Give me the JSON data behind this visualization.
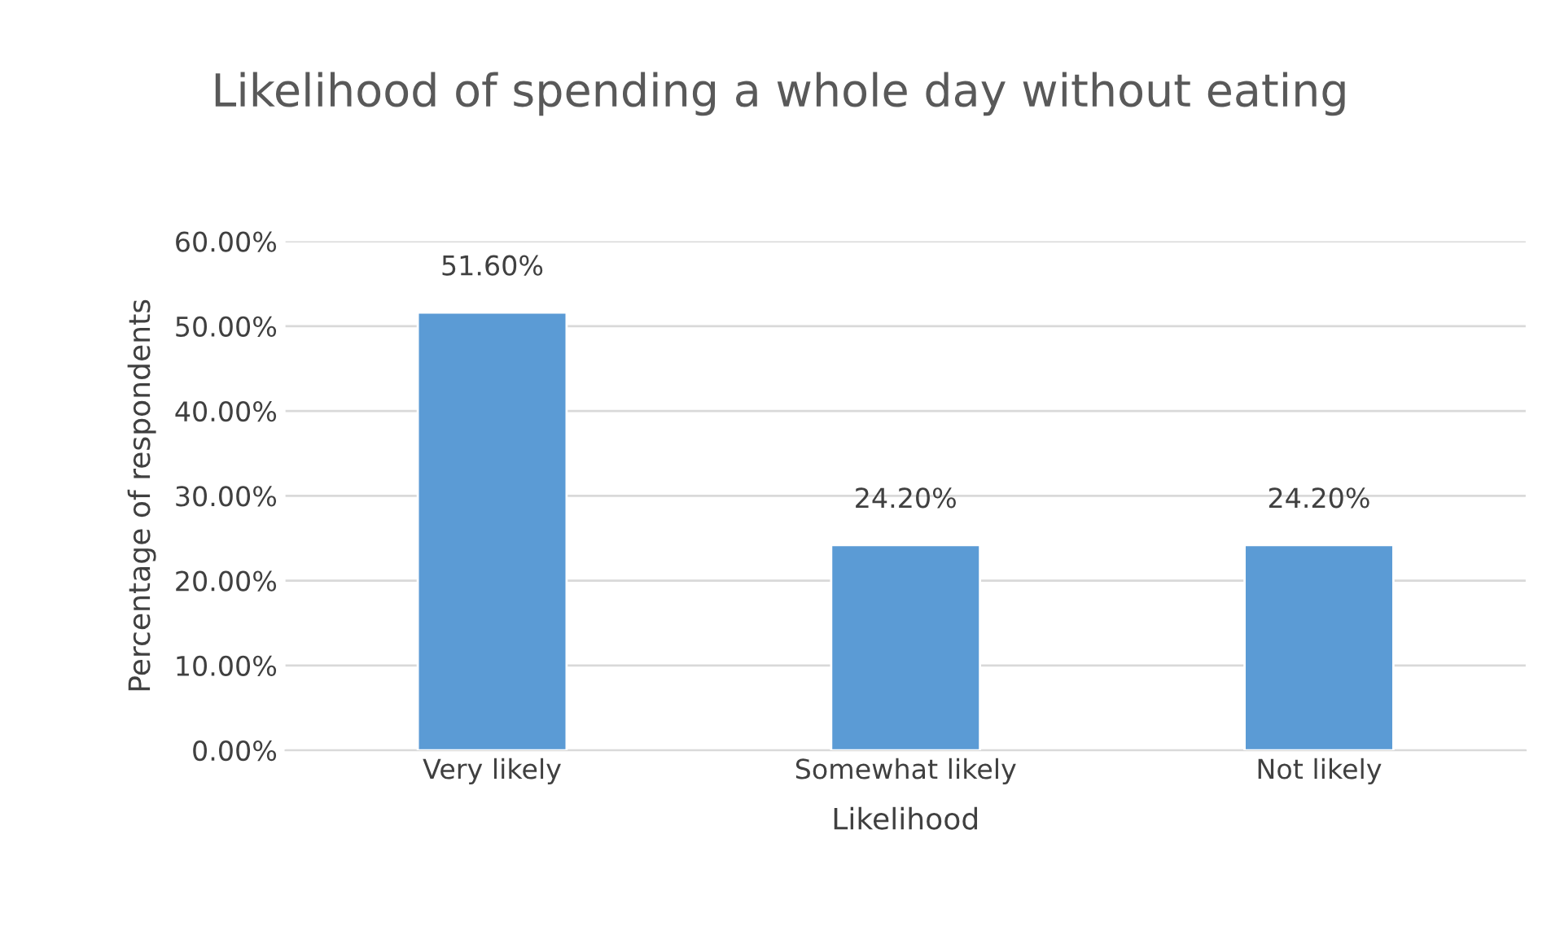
{
  "chart_data": {
    "type": "bar",
    "title": "Likelihood of spending a whole day without eating",
    "xlabel": "Likelihood",
    "ylabel": "Percentage of respondents",
    "categories": [
      "Very likely",
      "Somewhat likely",
      "Not likely"
    ],
    "values": [
      51.6,
      24.2,
      24.2
    ],
    "value_labels": [
      "51.60%",
      "24.20%",
      "24.20%"
    ],
    "color": "#5b9bd5",
    "ylim": [
      0,
      60
    ],
    "yticks": [
      {
        "value": 0,
        "label": "0.00%"
      },
      {
        "value": 10,
        "label": "10.00%"
      },
      {
        "value": 20,
        "label": "20.00%"
      },
      {
        "value": 30,
        "label": "30.00%"
      },
      {
        "value": 40,
        "label": "40.00%"
      },
      {
        "value": 50,
        "label": "50.00%"
      },
      {
        "value": 60,
        "label": "60.00%"
      }
    ],
    "grid": "y",
    "legend": false
  }
}
